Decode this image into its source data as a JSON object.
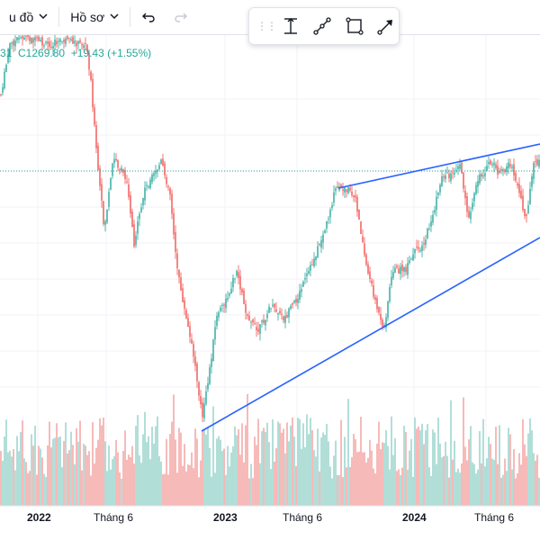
{
  "toolbar": {
    "chart_label": "u đồ",
    "profile_label": "Hồ sơ",
    "chevron_icon": "chevron-down-icon",
    "undo_icon": "undo-icon",
    "redo_icon": "redo-icon"
  },
  "drawing_toolbar": {
    "tools": [
      "date-range-icon",
      "trend-line-icon",
      "rectangle-icon",
      "arrow-icon"
    ]
  },
  "legend": {
    "text": "31  C1269.80  +19.43 (+1.55%)"
  },
  "x_axis": {
    "labels": [
      "2022",
      "Tháng 6",
      "2023",
      "Tháng 6",
      "2024",
      "Tháng 6"
    ],
    "year_labels": [
      "2022",
      "2023",
      "2024"
    ]
  },
  "colors": {
    "up": "#26a69a",
    "down": "#ef5350",
    "volume_up": "#9fd6cf",
    "volume_down": "#f4aaa8",
    "trendline": "#2962ff",
    "price_line": "#26a69a",
    "grid": "#f0f3fa"
  },
  "chart_data": {
    "type": "candlestick",
    "last_close": 1269.8,
    "change": 19.43,
    "change_percent": 1.55,
    "period": "2022-2024"
  }
}
